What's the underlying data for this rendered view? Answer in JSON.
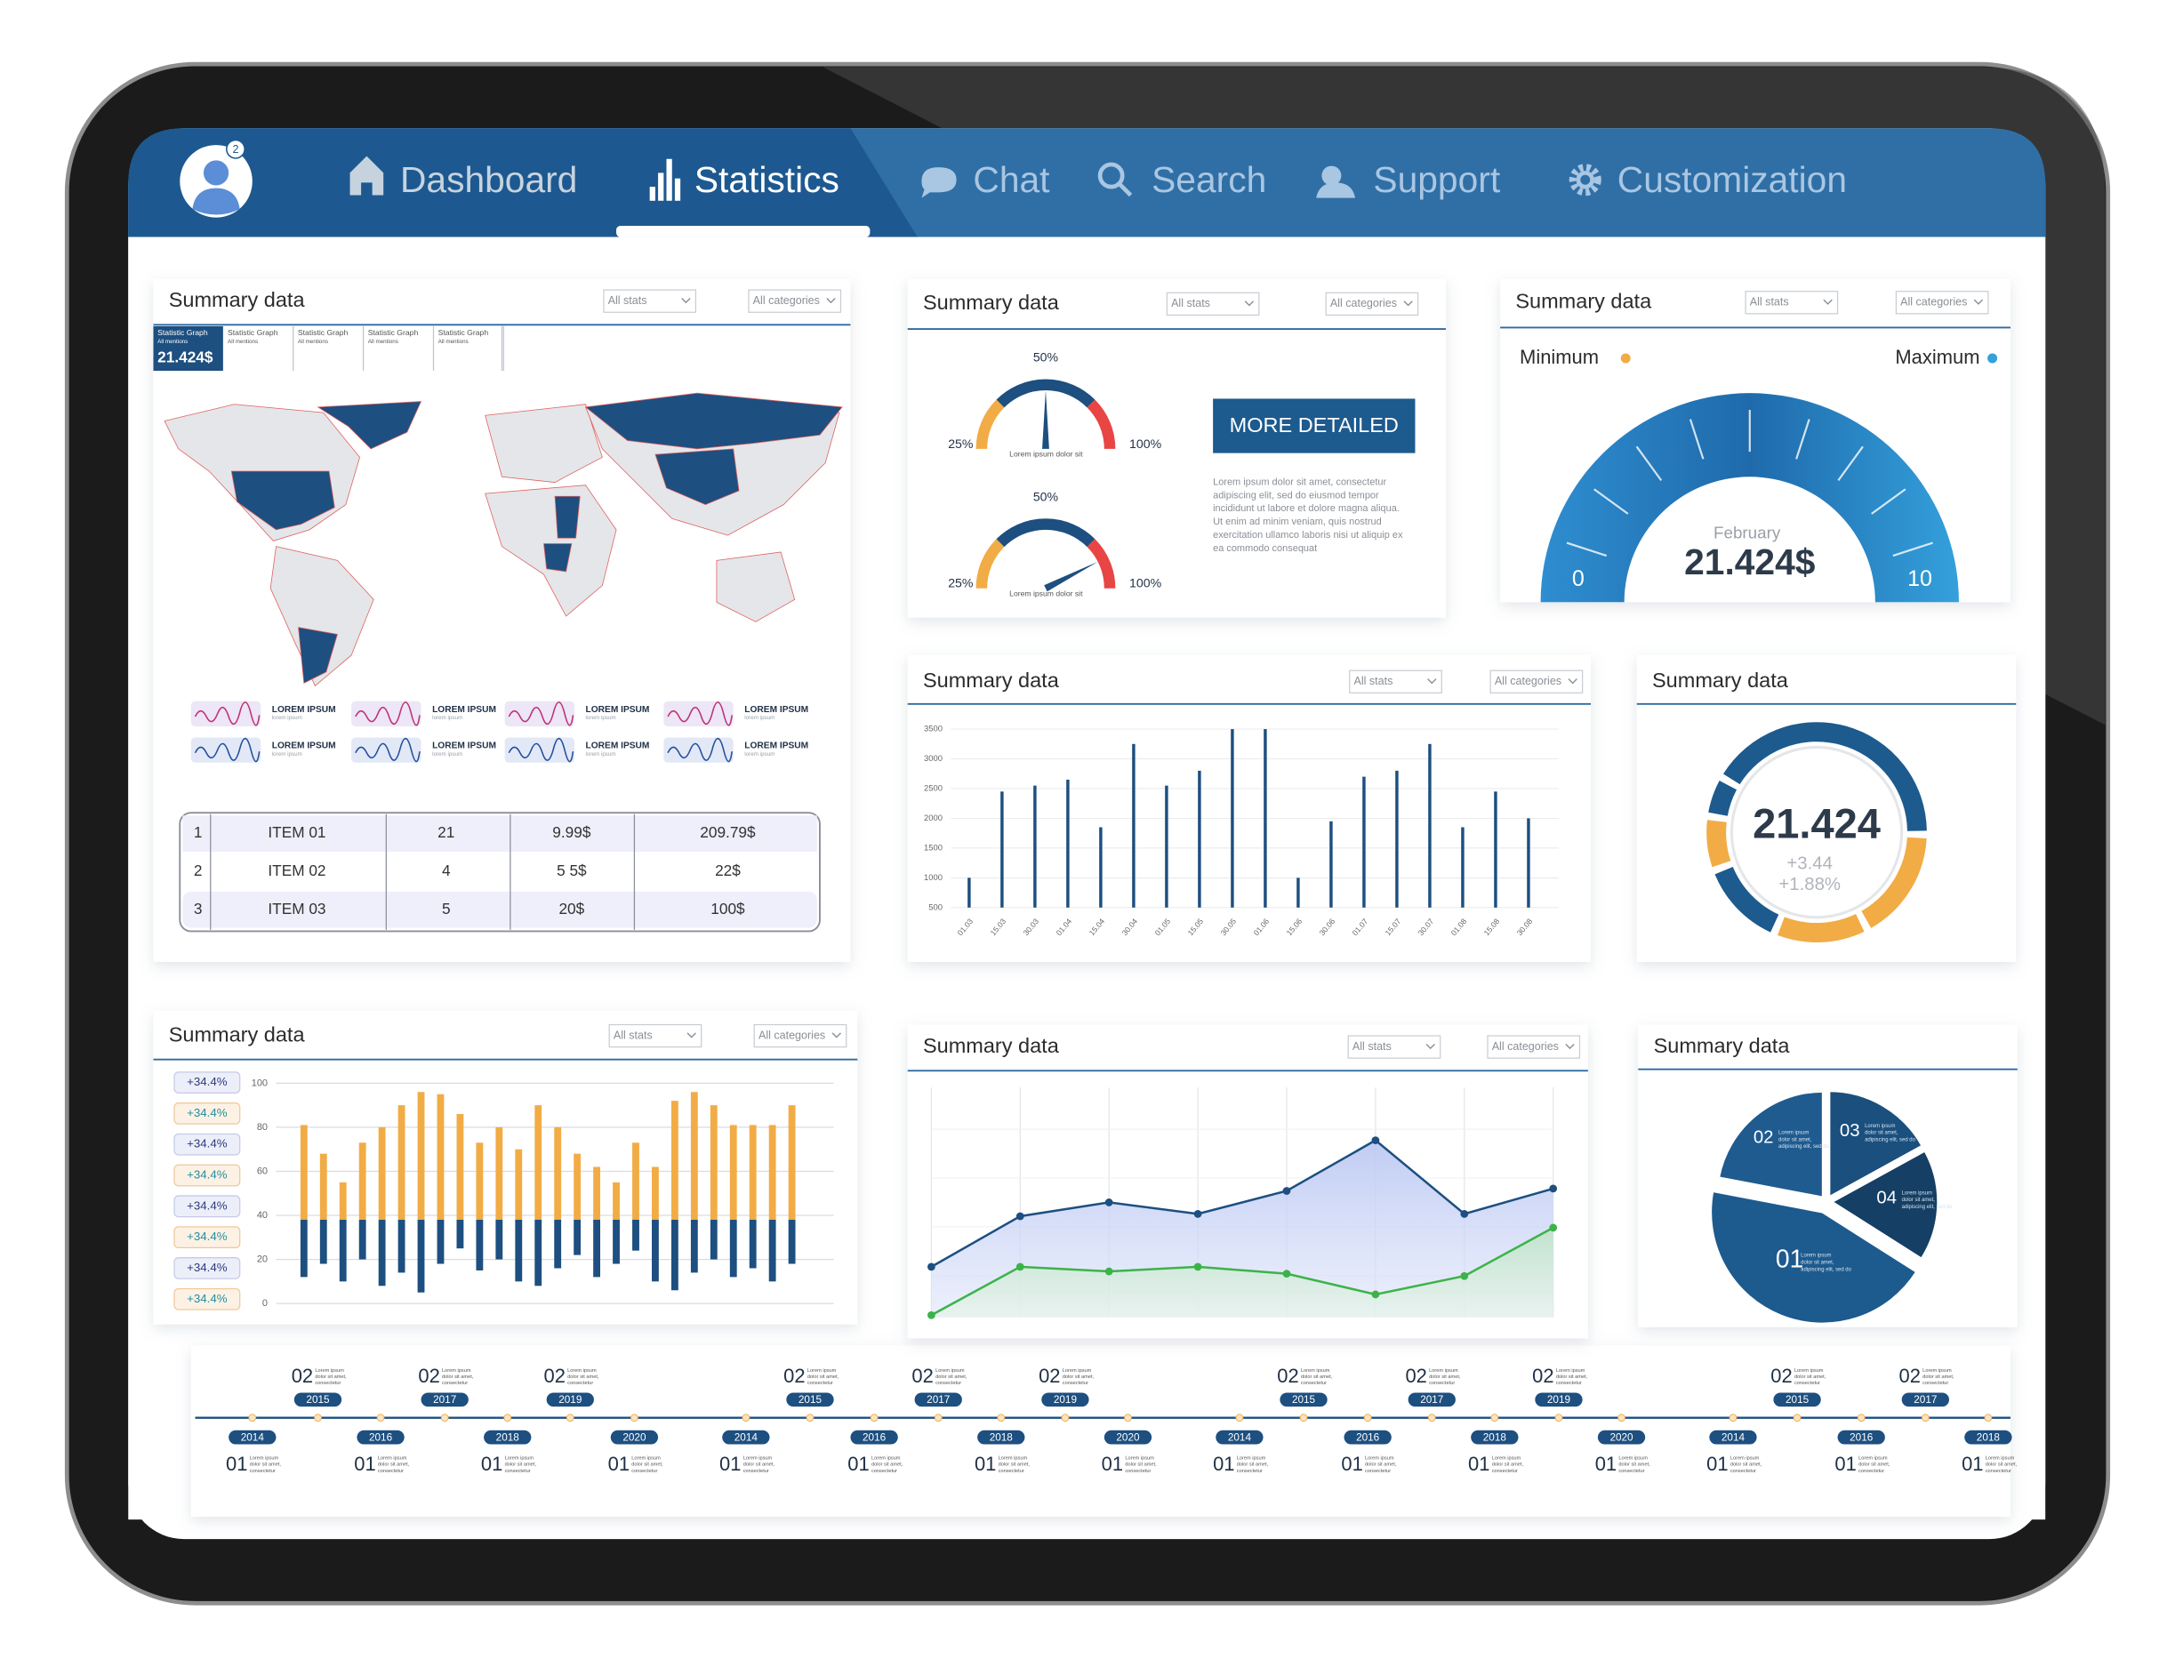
{
  "nav": {
    "badge": "2",
    "items": [
      "Dashboard",
      "Statistics",
      "Chat",
      "Search",
      "Support",
      "Customization"
    ]
  },
  "panels": [
    {
      "title": "Summary data",
      "stats": "All stats",
      "categories": "All categories"
    },
    {
      "title": "Summary data",
      "stats": "All stats",
      "categories": "All categories"
    },
    {
      "title": "Summary data",
      "stats": "All stats",
      "categories": "All categories"
    },
    {
      "title": "Summary data",
      "stats": "All stats",
      "categories": "All categories"
    },
    {
      "title": "Summary data"
    },
    {
      "title": "Summary data",
      "stats": "All stats",
      "categories": "All categories"
    },
    {
      "title": "Summary data",
      "stats": "All stats",
      "categories": "All categories"
    },
    {
      "title": "Summary data"
    }
  ],
  "map_panel": {
    "tabs": [
      "Statistic Graph",
      "Statistic Graph",
      "Statistic Graph",
      "Statistic Graph",
      "Statistic Graph"
    ],
    "tab_sub": "All mentions",
    "value": "21.424$",
    "sparklines": [
      "LOREM IPSUM",
      "LOREM IPSUM",
      "LOREM IPSUM",
      "LOREM IPSUM",
      "LOREM IPSUM",
      "LOREM IPSUM",
      "LOREM IPSUM",
      "LOREM IPSUM"
    ],
    "spark_sub": "lorem ipsum",
    "table": {
      "rows": [
        [
          "1",
          "ITEM 01",
          "21",
          "9.99$",
          "209.79$"
        ],
        [
          "2",
          "ITEM 02",
          "4",
          "5 5$",
          "22$"
        ],
        [
          "3",
          "ITEM 03",
          "5",
          "20$",
          "100$"
        ]
      ]
    }
  },
  "gauge_panel": {
    "gauge_lim": [
      0,
      100
    ],
    "gauges": [
      {
        "low": "25%",
        "mid": "50%",
        "high": "100%",
        "caption": "Lorem ipsum  dolor sit",
        "value": 50
      },
      {
        "low": "25%",
        "mid": "50%",
        "high": "100%",
        "caption": "Lorem ipsum  dolor sit",
        "value": 85
      }
    ],
    "button": "MORE  DETAILED",
    "text": [
      "Lorem ipsum dolor sit amet, consectetur",
      "adipiscing elit, sed do eiusmod tempor",
      "incididunt ut labore et dolore magna aliqua.",
      "Ut enim ad minim veniam, quis nostrud",
      "exercitation ullamco laboris nisi ut aliquip ex",
      "ea commodo consequat"
    ]
  },
  "range_panel": {
    "min_label": "Minimum",
    "max_label": "Maximum",
    "month": "February",
    "value": "21.424$",
    "lim": [
      0,
      10
    ]
  },
  "bar_chart": {
    "type": "bar",
    "categories": [
      "01.03",
      "15.03",
      "30.03",
      "01.04",
      "15.04",
      "30.04",
      "01.05",
      "15.05",
      "30.05",
      "01.06",
      "15.06",
      "30.06",
      "01.07",
      "15.07",
      "30.07",
      "01.08",
      "15.08",
      "30.08"
    ],
    "values": [
      1000,
      2450,
      2550,
      2650,
      1850,
      3250,
      2550,
      2800,
      3500,
      3500,
      1000,
      1950,
      2700,
      2800,
      3250,
      1850,
      2450,
      2000
    ],
    "ylim": [
      500,
      3500
    ],
    "yticks": [
      500,
      1000,
      1500,
      2000,
      2500,
      3000,
      3500
    ],
    "color": "#1d4f80",
    "grid": true
  },
  "donut": {
    "type": "donut",
    "value": "21.424",
    "delta": "+3.44",
    "delta_pct": "+1.88%",
    "values": [
      42,
      17,
      14,
      13,
      8,
      6
    ],
    "colors": [
      "#1d5a8e",
      "#f2ac45",
      "#f2ac45",
      "#1d5a8e",
      "#f2ac45",
      "#1d5a8e"
    ]
  },
  "diverging_chart": {
    "type": "bar",
    "labels": [
      "+34.4%",
      "+34.4%",
      "+34.4%",
      "+34.4%",
      "+34.4%",
      "+34.4%",
      "+34.4%",
      "+34.4%"
    ],
    "ylim": [
      0,
      100
    ],
    "yticks": [
      0,
      20,
      40,
      60,
      80,
      100
    ],
    "split": 38,
    "grid": true,
    "series": [
      {
        "color": "#f2ac45",
        "values": [
          81,
          68,
          55,
          73,
          80,
          90,
          96,
          95,
          86,
          73,
          80,
          70,
          90,
          80,
          68,
          62,
          55,
          73,
          62,
          92,
          96,
          90,
          81,
          81,
          81,
          90
        ]
      },
      {
        "color": "#1d4f80",
        "values": [
          12,
          18,
          10,
          20,
          8,
          14,
          5,
          18,
          25,
          15,
          20,
          10,
          8,
          16,
          22,
          12,
          18,
          24,
          10,
          6,
          14,
          20,
          12,
          16,
          10,
          18
        ]
      }
    ]
  },
  "area_chart": {
    "type": "area",
    "ylim": [
      0,
      100
    ],
    "grid": true,
    "series": [
      {
        "color": "#1d4f80",
        "values": [
          22,
          44,
          50,
          45,
          55,
          77,
          45,
          56
        ]
      },
      {
        "color": "#3cb34a",
        "values": [
          1,
          22,
          20,
          22,
          19,
          10,
          18,
          39
        ]
      }
    ]
  },
  "pie": {
    "type": "pie",
    "labels": [
      "01",
      "02",
      "03",
      "04"
    ],
    "values": [
      44,
      22,
      17,
      17
    ],
    "colors": [
      "#1d5a8e",
      "#1f5b8f",
      "#1a4f7e",
      "#153f64"
    ],
    "caption": [
      "Lorem ipsum",
      "dolor sit amet,",
      "adipiscing elit, sed do"
    ]
  },
  "timeline": {
    "caption": [
      "Lorem ipsum",
      "dolor sit amet,",
      "consectetur"
    ],
    "top": [
      {
        "num": "02",
        "year": "2015"
      },
      {
        "num": "02",
        "year": "2017"
      },
      {
        "num": "02",
        "year": "2019"
      },
      {
        "num": "02",
        "year": "2015"
      },
      {
        "num": "02",
        "year": "2017"
      },
      {
        "num": "02",
        "year": "2019"
      },
      {
        "num": "02",
        "year": "2015"
      },
      {
        "num": "02",
        "year": "2017"
      },
      {
        "num": "02",
        "year": "2019"
      },
      {
        "num": "02",
        "year": "2015"
      },
      {
        "num": "02",
        "year": "2017"
      }
    ],
    "bottom": [
      {
        "num": "01",
        "year": "2014"
      },
      {
        "num": "01",
        "year": "2016"
      },
      {
        "num": "01",
        "year": "2018"
      },
      {
        "num": "01",
        "year": "2020"
      },
      {
        "num": "01",
        "year": "2014"
      },
      {
        "num": "01",
        "year": "2016"
      },
      {
        "num": "01",
        "year": "2018"
      },
      {
        "num": "01",
        "year": "2020"
      },
      {
        "num": "01",
        "year": "2014"
      },
      {
        "num": "01",
        "year": "2016"
      },
      {
        "num": "01",
        "year": "2018"
      },
      {
        "num": "01",
        "year": "2020"
      },
      {
        "num": "01",
        "year": "2014"
      },
      {
        "num": "01",
        "year": "2016"
      },
      {
        "num": "01",
        "year": "2018"
      }
    ]
  }
}
